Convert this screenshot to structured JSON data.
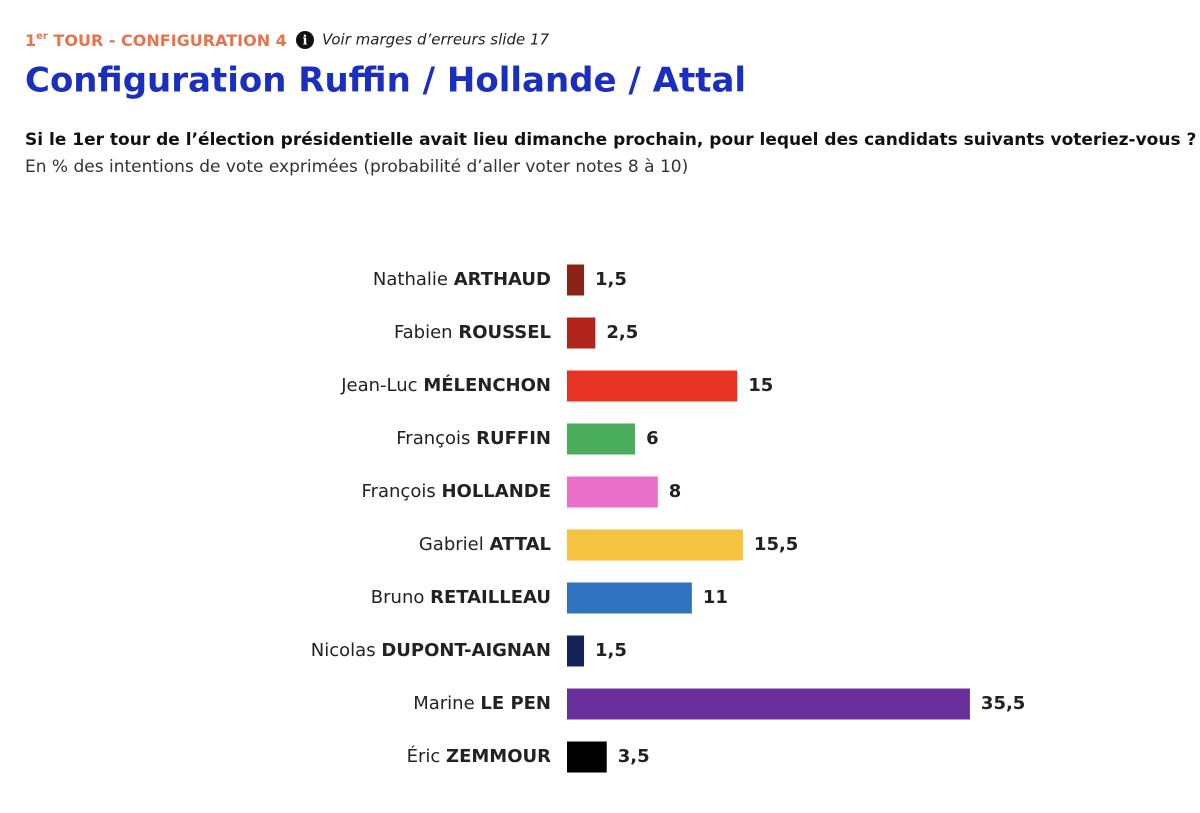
{
  "header": {
    "tour_number": "1",
    "tour_superscript": "er",
    "tour_rest": " TOUR - CONFIGURATION 4",
    "note": "Voir marges d’erreurs slide 17"
  },
  "chart_data": {
    "type": "hbar",
    "title": "Configuration Ruffin / Hollande / Attal",
    "question": "Si le 1er tour de l’élection présidentielle avait lieu dimanche prochain, pour lequel des candidats suivants voteriez-vous ?",
    "subtitle": "En % des intentions de vote exprimées (probabilité d’aller voter notes 8 à 10)",
    "categories": [
      {
        "first": "Nathalie",
        "last": "ARTHAUD"
      },
      {
        "first": "Fabien",
        "last": "ROUSSEL"
      },
      {
        "first": "Jean-Luc",
        "last": "MÉLENCHON"
      },
      {
        "first": "François",
        "last": "RUFFIN"
      },
      {
        "first": "François",
        "last": "HOLLANDE"
      },
      {
        "first": "Gabriel",
        "last": "ATTAL"
      },
      {
        "first": "Bruno",
        "last": "RETAILLEAU"
      },
      {
        "first": "Nicolas",
        "last": "DUPONT-AIGNAN"
      },
      {
        "first": "Marine",
        "last": "LE PEN"
      },
      {
        "first": "Éric",
        "last": "ZEMMOUR"
      }
    ],
    "values": [
      1.5,
      2.5,
      15,
      6,
      8,
      15.5,
      11,
      1.5,
      35.5,
      3.5
    ],
    "value_labels": [
      "1,5",
      "2,5",
      "15",
      "6",
      "8",
      "15,5",
      "11",
      "1,5",
      "35,5",
      "3,5"
    ],
    "colors": [
      "#8b2418",
      "#b0241c",
      "#e63323",
      "#4aad5b",
      "#ea6fc8",
      "#f5c242",
      "#2f72bd",
      "#142459",
      "#6a2f9a",
      "#000000"
    ]
  }
}
